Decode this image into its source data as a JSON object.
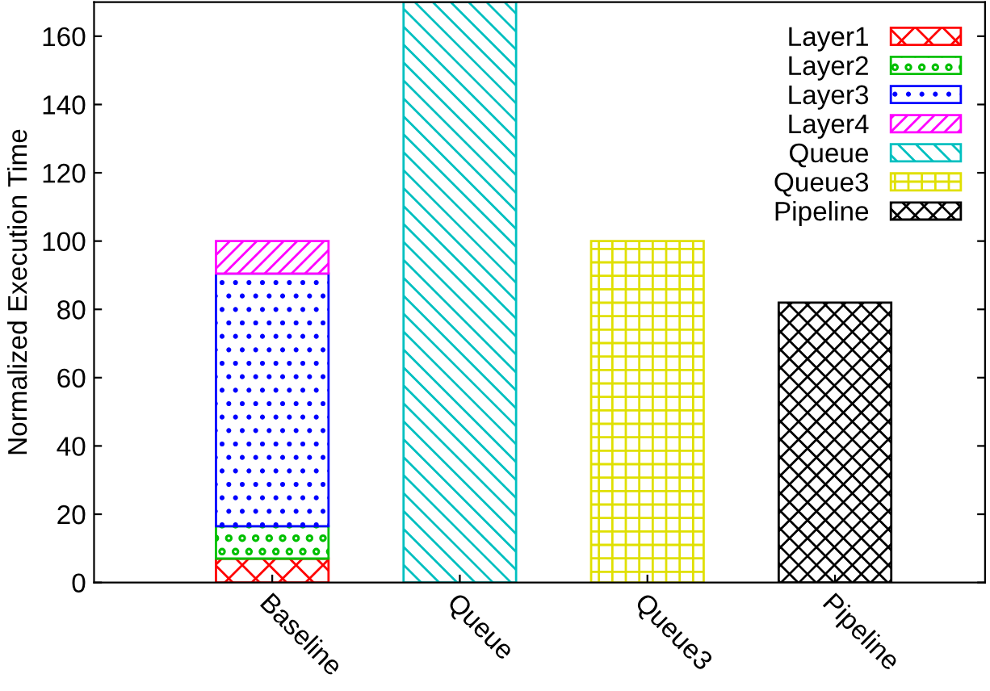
{
  "chart_data": {
    "type": "bar",
    "stacked": true,
    "ylabel": "Normalized Execution Time",
    "categories": [
      "Baseline",
      "Queue",
      "Queue3",
      "Pipeline"
    ],
    "series": [
      {
        "name": "Layer1",
        "color": "#ff0000",
        "values": [
          7,
          null,
          null,
          null
        ]
      },
      {
        "name": "Layer2",
        "color": "#00c000",
        "values": [
          9.5,
          null,
          null,
          null
        ]
      },
      {
        "name": "Layer3",
        "color": "#0000ff",
        "values": [
          74,
          null,
          null,
          null
        ]
      },
      {
        "name": "Layer4",
        "color": "#ff00ff",
        "values": [
          9.5,
          null,
          null,
          null
        ]
      },
      {
        "name": "Queue",
        "color": "#00c0c0",
        "values": [
          null,
          170,
          null,
          null
        ]
      },
      {
        "name": "Queue3",
        "color": "#e0e000",
        "values": [
          null,
          null,
          100,
          null
        ]
      },
      {
        "name": "Pipeline",
        "color": "#000000",
        "values": [
          null,
          null,
          null,
          82
        ]
      }
    ],
    "ylim": [
      0,
      170
    ],
    "yticks": [
      0,
      20,
      40,
      60,
      80,
      100,
      120,
      140,
      160
    ],
    "grid": false,
    "legend": "top right"
  }
}
